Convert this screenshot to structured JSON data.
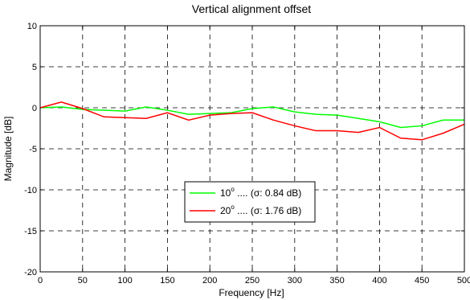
{
  "chart_data": {
    "type": "line",
    "title": "Vertical alignment offset",
    "xlabel": "Frequency [Hz]",
    "ylabel": "Magnitude [dB]",
    "xlim": [
      0,
      500
    ],
    "ylim": [
      -20,
      10
    ],
    "xticks": [
      0,
      50,
      100,
      150,
      200,
      250,
      300,
      350,
      400,
      450,
      500
    ],
    "yticks": [
      -20,
      -15,
      -10,
      -5,
      0,
      5,
      10
    ],
    "grid": true,
    "legend_position": "lower-center",
    "x": [
      0,
      25,
      50,
      75,
      100,
      125,
      150,
      175,
      200,
      225,
      250,
      275,
      300,
      325,
      350,
      375,
      400,
      425,
      450,
      475,
      500
    ],
    "series": [
      {
        "name": "10",
        "legend_superscript": "o",
        "legend_suffix": " .... (σ: 0.84 dB)",
        "color": "#00ff00",
        "values": [
          0,
          0.1,
          -0.2,
          -0.3,
          -0.4,
          0.1,
          -0.3,
          -0.8,
          -0.7,
          -0.6,
          -0.1,
          0.1,
          -0.5,
          -0.8,
          -0.9,
          -1.3,
          -1.7,
          -2.4,
          -2.2,
          -1.5,
          -1.5
        ]
      },
      {
        "name": "20",
        "legend_superscript": "o",
        "legend_suffix": " .... (σ: 1.76 dB)",
        "color": "#ff0000",
        "values": [
          0,
          0.7,
          -0.1,
          -1.1,
          -1.2,
          -1.3,
          -0.6,
          -1.5,
          -0.9,
          -0.7,
          -0.6,
          -1.5,
          -2.2,
          -2.8,
          -2.8,
          -3.0,
          -2.4,
          -3.7,
          -3.9,
          -3.1,
          -2.0
        ]
      }
    ]
  }
}
